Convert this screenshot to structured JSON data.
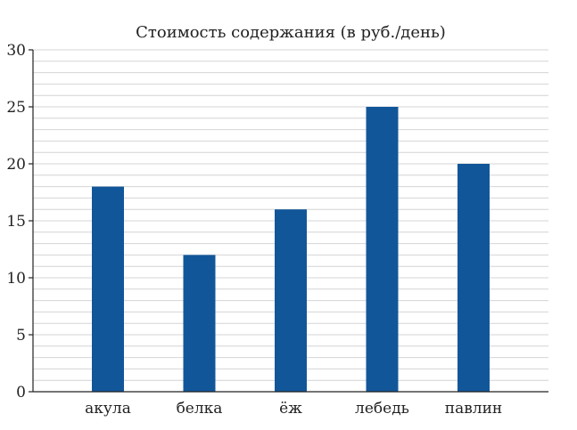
{
  "chart_data": {
    "type": "bar",
    "title": "Стоимость содержания (в руб./день)",
    "xlabel": "",
    "ylabel": "",
    "categories": [
      "акула",
      "белка",
      "ёж",
      "лебедь",
      "павлин"
    ],
    "values": [
      18,
      12,
      16,
      25,
      20
    ],
    "ylim": [
      0,
      30
    ],
    "y_ticks": [
      0,
      5,
      10,
      15,
      20,
      25,
      30
    ],
    "minor_grid_step": 1,
    "grid": true,
    "legend": "none",
    "colors": {
      "bar": "#12569a",
      "grid": "#d4d4d4",
      "axis": "#222222"
    }
  }
}
